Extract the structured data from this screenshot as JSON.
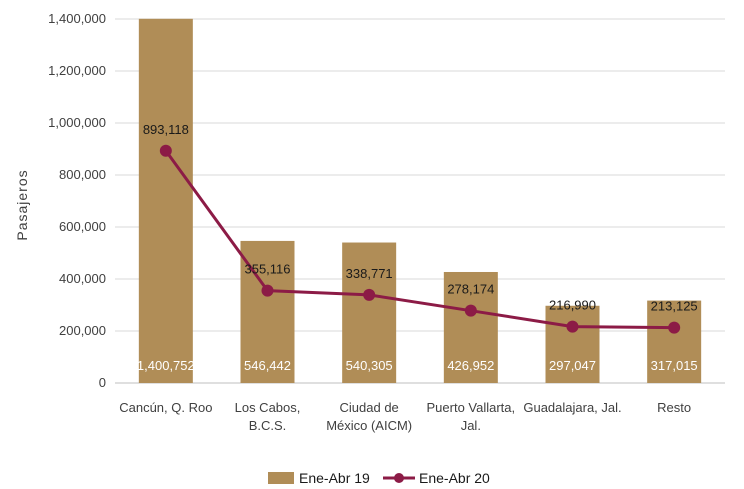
{
  "chart_data": {
    "type": "bar",
    "categories": [
      [
        "Cancún, Q. Roo"
      ],
      [
        "Los Cabos,",
        "B.C.S."
      ],
      [
        "Ciudad de",
        "México (AICM)"
      ],
      [
        "Puerto Vallarta,",
        "Jal."
      ],
      [
        "Guadalajara, Jal."
      ],
      [
        "Resto"
      ]
    ],
    "series": [
      {
        "name": "Ene-Abr 19",
        "type": "bar",
        "color": "#B08D57",
        "values": [
          1400752,
          546442,
          540305,
          426952,
          297047,
          317015
        ],
        "labels": [
          "1,400,752",
          "546,442",
          "540,305",
          "426,952",
          "297,047",
          "317,015"
        ]
      },
      {
        "name": "Ene-Abr 20",
        "type": "line",
        "color": "#8C1B46",
        "values": [
          893118,
          355116,
          338771,
          278174,
          216990,
          213125
        ],
        "labels": [
          "893,118",
          "355,116",
          "338,771",
          "278,174",
          "216,990",
          "213,125"
        ]
      }
    ],
    "ylabel": "Pasajeros",
    "ylim": [
      0,
      1400000
    ],
    "yticks": [
      0,
      200000,
      400000,
      600000,
      800000,
      1000000,
      1200000,
      1400000
    ],
    "ytick_labels": [
      "0",
      "200,000",
      "400,000",
      "600,000",
      "800,000",
      "1,000,000",
      "1,200,000",
      "1,400,000"
    ],
    "grid": true,
    "legend": "bottom"
  }
}
